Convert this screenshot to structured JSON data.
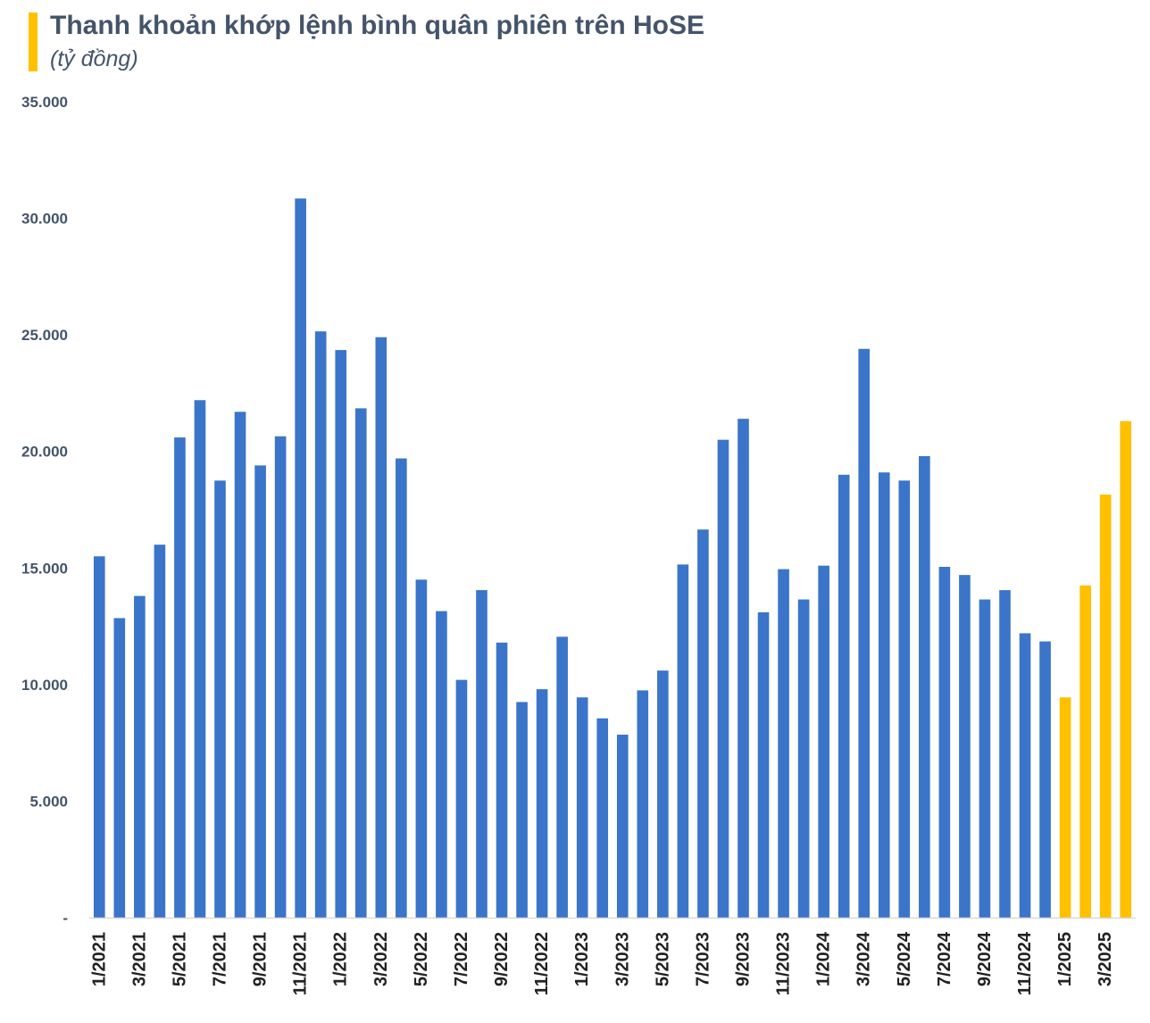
{
  "chart_data": {
    "type": "bar",
    "title": "Thanh khoản khớp lệnh bình quân phiên trên HoSE",
    "subtitle": "(tỷ đồng)",
    "xlabel": "",
    "ylabel": "",
    "ylim": [
      0,
      35000
    ],
    "yticks": [
      {
        "value": 0,
        "label": "-"
      },
      {
        "value": 5000,
        "label": "5.000"
      },
      {
        "value": 10000,
        "label": "10.000"
      },
      {
        "value": 15000,
        "label": "15.000"
      },
      {
        "value": 20000,
        "label": "20.000"
      },
      {
        "value": 25000,
        "label": "25.000"
      },
      {
        "value": 30000,
        "label": "30.000"
      },
      {
        "value": 35000,
        "label": "35.000"
      }
    ],
    "grid": false,
    "legend": "none",
    "categories": [
      "1/2021",
      "2/2021",
      "3/2021",
      "4/2021",
      "5/2021",
      "6/2021",
      "7/2021",
      "8/2021",
      "9/2021",
      "10/2021",
      "11/2021",
      "12/2021",
      "1/2022",
      "2/2022",
      "3/2022",
      "4/2022",
      "5/2022",
      "6/2022",
      "7/2022",
      "8/2022",
      "9/2022",
      "10/2022",
      "11/2022",
      "12/2022",
      "1/2023",
      "2/2023",
      "3/2023",
      "4/2023",
      "5/2023",
      "6/2023",
      "7/2023",
      "8/2023",
      "9/2023",
      "10/2023",
      "11/2023",
      "12/2023",
      "1/2024",
      "2/2024",
      "3/2024",
      "4/2024",
      "5/2024",
      "6/2024",
      "7/2024",
      "8/2024",
      "9/2024",
      "10/2024",
      "11/2024",
      "12/2024",
      "1/2025",
      "2/2025",
      "3/2025",
      "4/2025"
    ],
    "tick_labels": [
      "1/2021",
      "",
      "3/2021",
      "",
      "5/2021",
      "",
      "7/2021",
      "",
      "9/2021",
      "",
      "11/2021",
      "",
      "1/2022",
      "",
      "3/2022",
      "",
      "5/2022",
      "",
      "7/2022",
      "",
      "9/2022",
      "",
      "11/2022",
      "",
      "1/2023",
      "",
      "3/2023",
      "",
      "5/2023",
      "",
      "7/2023",
      "",
      "9/2023",
      "",
      "11/2023",
      "",
      "1/2024",
      "",
      "3/2024",
      "",
      "5/2024",
      "",
      "7/2024",
      "",
      "9/2024",
      "",
      "11/2024",
      "",
      "1/2025",
      "",
      "3/2025",
      ""
    ],
    "values": [
      15500,
      12850,
      13800,
      16000,
      20600,
      22200,
      18750,
      21700,
      19400,
      20650,
      30850,
      25150,
      24350,
      21850,
      24900,
      19700,
      14500,
      13150,
      10200,
      14050,
      11800,
      9250,
      9800,
      12050,
      9450,
      8550,
      7850,
      9750,
      10600,
      15150,
      16650,
      20500,
      21400,
      13100,
      14950,
      13650,
      15100,
      19000,
      24400,
      19100,
      18750,
      19800,
      15050,
      14700,
      13650,
      14050,
      12200,
      11850,
      9450,
      14250,
      18150,
      21300
    ],
    "colors": {
      "base": "#3A75CA",
      "highlight": "#FFC000",
      "axis": "#D9D9D9"
    },
    "highlight_from_index": 48
  }
}
